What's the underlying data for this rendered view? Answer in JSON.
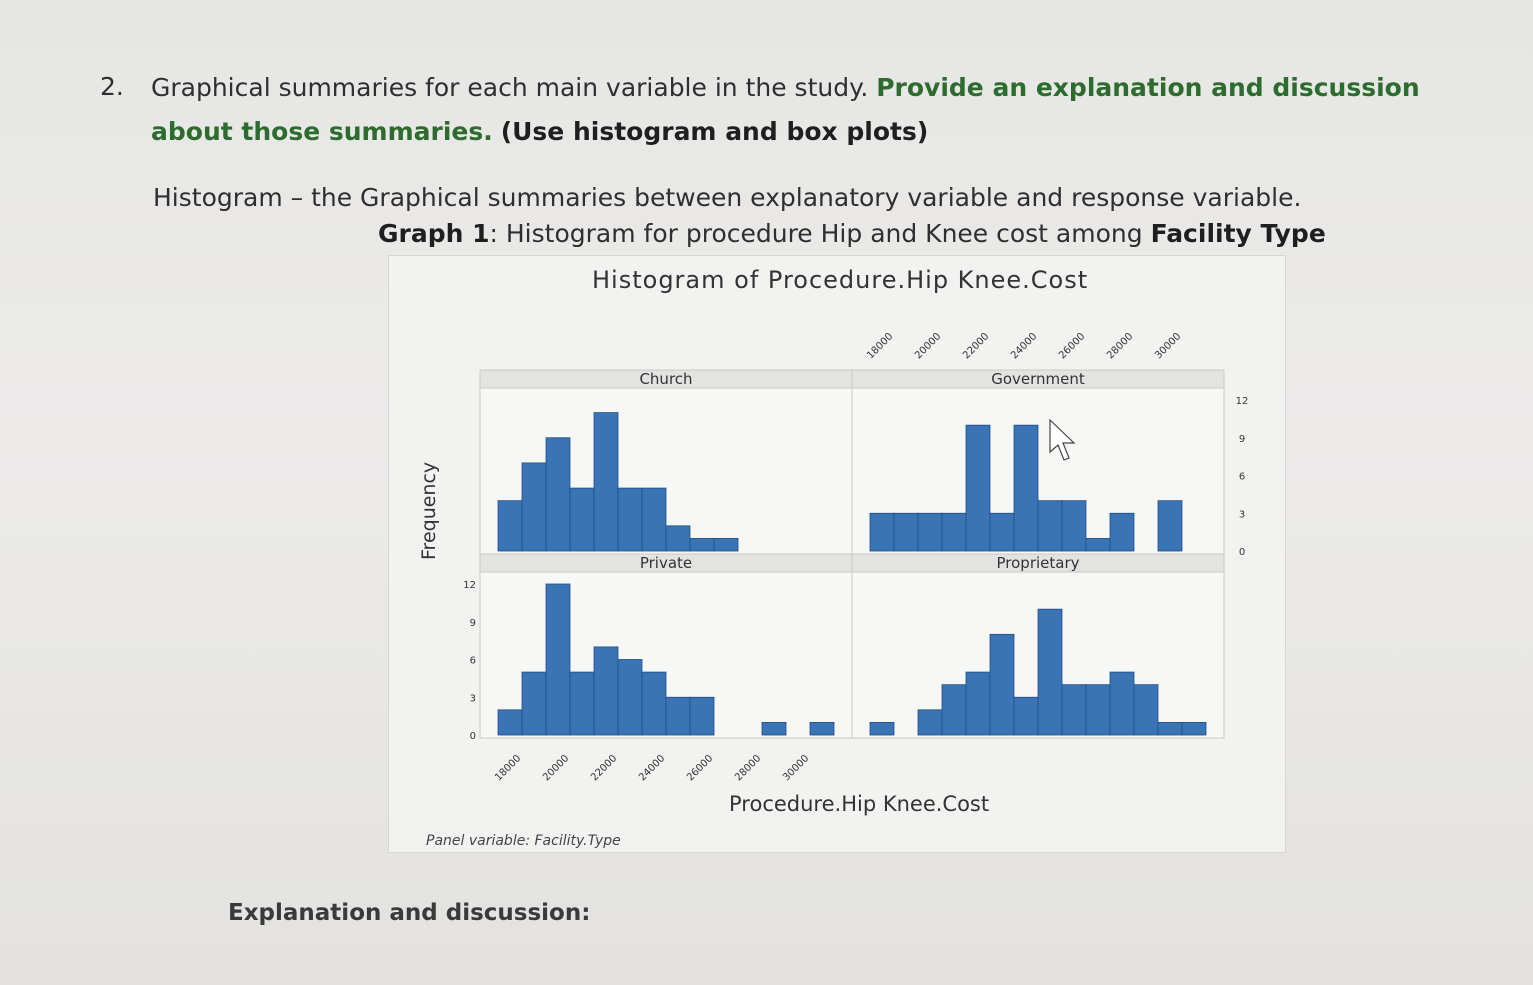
{
  "question": {
    "number": "2.",
    "text_plain": "Graphical summaries for each main variable in the study.",
    "text_bold": "Provide an explanation and discussion about those summaries.",
    "text_dark": "(Use histogram and box plots)"
  },
  "histogram_intro": "Histogram – the Graphical summaries between explanatory variable and response variable.",
  "caption": {
    "label": "Graph 1",
    "text": ": Histogram for procedure Hip and Knee cost among ",
    "bold_tail": "Facility Type"
  },
  "colors": {
    "bar_fill": "#3a74b4",
    "bar_stroke": "#1f4f86",
    "panel_bg": "#f7f7f6",
    "header_bg": "#e3e3e2"
  },
  "chart_data": {
    "type": "bar",
    "title": "Histogram of Procedure.Hip Knee.Cost",
    "xlabel": "Procedure.Hip Knee.Cost",
    "ylabel": "Frequency",
    "panel_variable": "Panel variable: Facility.Type",
    "bin_start": 17500,
    "bin_width": 1000,
    "xlim": [
      17000,
      32000
    ],
    "ylim": [
      0,
      12
    ],
    "x_ticks": [
      "18000",
      "20000",
      "22000",
      "24000",
      "26000",
      "28000",
      "30000"
    ],
    "y_ticks": [
      "0",
      "3",
      "6",
      "9",
      "12"
    ],
    "panels": [
      {
        "name": "Church",
        "values": [
          4,
          7,
          9,
          5,
          11,
          5,
          5,
          2,
          1,
          1,
          0,
          0,
          0,
          0
        ]
      },
      {
        "name": "Government",
        "values": [
          3,
          3,
          3,
          3,
          10,
          3,
          10,
          4,
          4,
          1,
          3,
          0,
          4,
          0
        ]
      },
      {
        "name": "Private",
        "values": [
          2,
          5,
          12,
          5,
          7,
          6,
          5,
          3,
          3,
          0,
          0,
          1,
          0,
          1
        ]
      },
      {
        "name": "Proprietary",
        "values": [
          1,
          0,
          2,
          4,
          5,
          8,
          3,
          10,
          4,
          4,
          5,
          4,
          1,
          1
        ]
      }
    ]
  },
  "explanation_label": "Explanation and discussion:"
}
